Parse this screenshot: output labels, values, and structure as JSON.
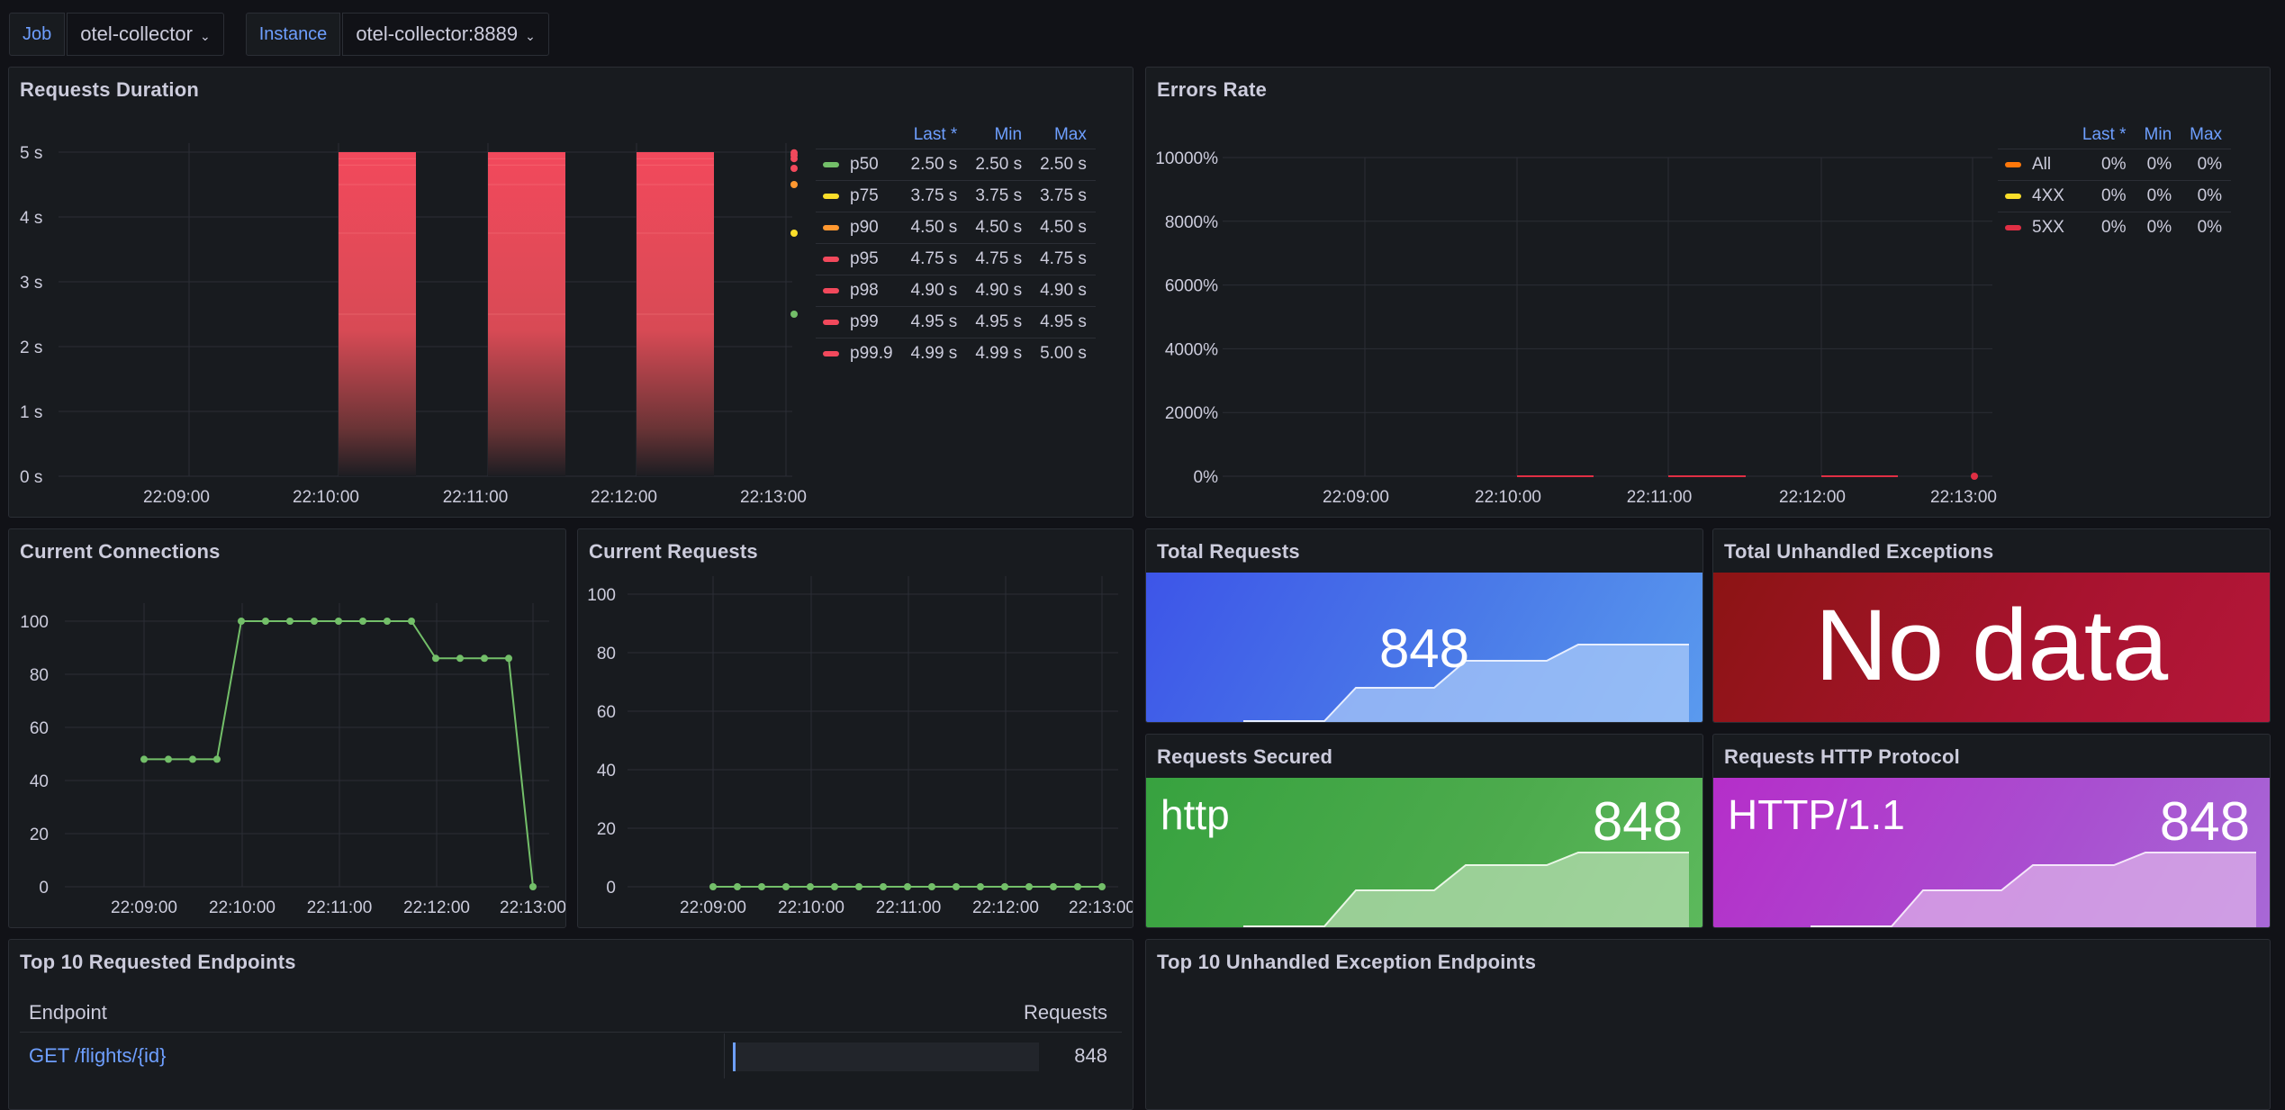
{
  "variables": [
    {
      "label": "Job",
      "value": "otel-collector"
    },
    {
      "label": "Instance",
      "value": "otel-collector:8889"
    }
  ],
  "panels": {
    "requests_duration": {
      "title": "Requests Duration",
      "legend_headers": [
        "Last *",
        "Min",
        "Max"
      ],
      "legend": [
        {
          "name": "p50",
          "color": "#73bf69",
          "last": "2.50 s",
          "min": "2.50 s",
          "max": "2.50 s"
        },
        {
          "name": "p75",
          "color": "#fade2a",
          "last": "3.75 s",
          "min": "3.75 s",
          "max": "3.75 s"
        },
        {
          "name": "p90",
          "color": "#ff9830",
          "last": "4.50 s",
          "min": "4.50 s",
          "max": "4.50 s"
        },
        {
          "name": "p95",
          "color": "#f2495c",
          "last": "4.75 s",
          "min": "4.75 s",
          "max": "4.75 s"
        },
        {
          "name": "p98",
          "color": "#f2495c",
          "last": "4.90 s",
          "min": "4.90 s",
          "max": "4.90 s"
        },
        {
          "name": "p99",
          "color": "#f2495c",
          "last": "4.95 s",
          "min": "4.95 s",
          "max": "4.95 s"
        },
        {
          "name": "p99.9",
          "color": "#f2495c",
          "last": "4.99 s",
          "min": "4.99 s",
          "max": "5.00 s"
        }
      ]
    },
    "errors_rate": {
      "title": "Errors Rate",
      "legend_headers": [
        "Last *",
        "Min",
        "Max"
      ],
      "legend": [
        {
          "name": "All",
          "color": "#ff780a",
          "last": "0%",
          "min": "0%",
          "max": "0%"
        },
        {
          "name": "4XX",
          "color": "#fade2a",
          "last": "0%",
          "min": "0%",
          "max": "0%"
        },
        {
          "name": "5XX",
          "color": "#e02f44",
          "last": "0%",
          "min": "0%",
          "max": "0%"
        }
      ]
    },
    "current_connections": {
      "title": "Current Connections"
    },
    "current_requests": {
      "title": "Current Requests"
    },
    "total_requests": {
      "title": "Total Requests",
      "value": "848"
    },
    "total_unhandled": {
      "title": "Total Unhandled Exceptions",
      "value": "No data"
    },
    "requests_secured": {
      "title": "Requests Secured",
      "label": "http",
      "value": "848"
    },
    "requests_protocol": {
      "title": "Requests HTTP Protocol",
      "label": "HTTP/1.1",
      "value": "848"
    },
    "top_endpoints": {
      "title": "Top 10 Requested Endpoints",
      "columns": [
        "Endpoint",
        "Requests"
      ],
      "rows": [
        {
          "endpoint": "GET /flights/{id}",
          "requests": "848"
        }
      ]
    },
    "top_exceptions": {
      "title": "Top 10 Unhandled Exception Endpoints"
    }
  },
  "chart_data": [
    {
      "type": "heatmap",
      "title": "Requests Duration",
      "x_ticks": [
        "22:09:00",
        "22:10:00",
        "22:11:00",
        "22:12:00",
        "22:13:00"
      ],
      "y_ticks": [
        "0 s",
        "1 s",
        "2 s",
        "3 s",
        "4 s",
        "5 s"
      ],
      "ylim": [
        0,
        5
      ]
    },
    {
      "type": "line",
      "title": "Errors Rate",
      "x_ticks": [
        "22:09:00",
        "22:10:00",
        "22:11:00",
        "22:12:00",
        "22:13:00"
      ],
      "y_ticks": [
        "0%",
        "2000%",
        "4000%",
        "6000%",
        "8000%",
        "10000%"
      ],
      "ylim": [
        0,
        10000
      ]
    },
    {
      "type": "line",
      "title": "Current Connections",
      "x_ticks": [
        "22:09:00",
        "22:10:00",
        "22:11:00",
        "22:12:00",
        "22:13:00"
      ],
      "y_ticks": [
        "0",
        "20",
        "40",
        "60",
        "80",
        "100"
      ],
      "ylim": [
        0,
        100
      ],
      "x": [
        "22:09:00",
        "22:09:15",
        "22:09:30",
        "22:09:45",
        "22:10:00",
        "22:10:15",
        "22:10:30",
        "22:10:45",
        "22:11:00",
        "22:11:15",
        "22:11:30",
        "22:11:45",
        "22:12:00",
        "22:12:15",
        "22:12:30",
        "22:12:45",
        "22:13:00"
      ],
      "series": [
        {
          "values": [
            48,
            48,
            48,
            48,
            100,
            100,
            100,
            100,
            100,
            100,
            100,
            100,
            86,
            86,
            86,
            86,
            0
          ]
        }
      ]
    },
    {
      "type": "line",
      "title": "Current Requests",
      "x_ticks": [
        "22:09:00",
        "22:10:00",
        "22:11:00",
        "22:12:00",
        "22:13:00"
      ],
      "y_ticks": [
        "0",
        "20",
        "40",
        "60",
        "80",
        "100"
      ],
      "ylim": [
        0,
        100
      ],
      "series": [
        {
          "values": [
            0,
            0,
            0,
            0,
            0,
            0,
            0,
            0,
            0,
            0,
            0,
            0,
            0,
            0,
            0,
            0,
            0
          ]
        }
      ]
    }
  ]
}
